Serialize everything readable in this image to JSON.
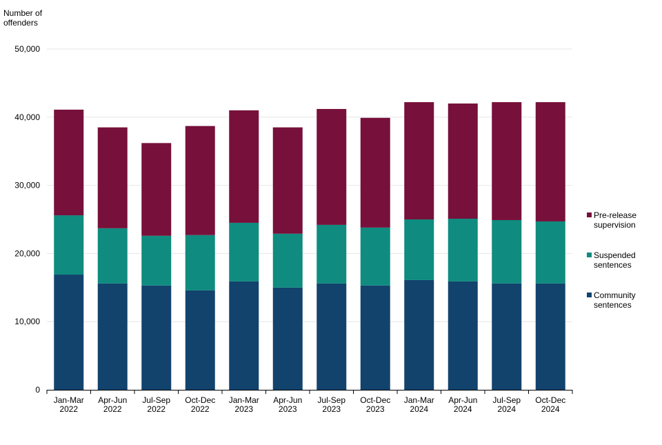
{
  "chart_data": {
    "type": "bar",
    "stacked": true,
    "ylabel": [
      "Number of",
      "offenders"
    ],
    "ylim": [
      0,
      50000
    ],
    "yticks": [
      {
        "value": 0,
        "label": "0"
      },
      {
        "value": 10000,
        "label": "10,000"
      },
      {
        "value": 20000,
        "label": "20,000"
      },
      {
        "value": 30000,
        "label": "30,000"
      },
      {
        "value": 40000,
        "label": "40,000"
      },
      {
        "value": 50000,
        "label": "50,000"
      }
    ],
    "grid": true,
    "legend_position": "right",
    "categories": [
      [
        "Jan-Mar",
        "2022"
      ],
      [
        "Apr-Jun",
        "2022"
      ],
      [
        "Jul-Sep",
        "2022"
      ],
      [
        "Oct-Dec",
        "2022"
      ],
      [
        "Jan-Mar",
        "2023"
      ],
      [
        "Apr-Jun",
        "2023"
      ],
      [
        "Jul-Sep",
        "2023"
      ],
      [
        "Oct-Dec",
        "2023"
      ],
      [
        "Jan-Mar",
        "2024"
      ],
      [
        "Apr-Jun",
        "2024"
      ],
      [
        "Jul-Sep",
        "2024"
      ],
      [
        "Oct-Dec",
        "2024"
      ]
    ],
    "series": [
      {
        "name": [
          "Community",
          "sentences"
        ],
        "color": "#12436d",
        "values": [
          16900,
          15600,
          15300,
          14600,
          15900,
          15000,
          15600,
          15300,
          16100,
          15900,
          15600,
          15600
        ]
      },
      {
        "name": [
          "Suspended",
          "sentences"
        ],
        "color": "#0f8b7f",
        "values": [
          8700,
          8100,
          7300,
          8100,
          8600,
          7900,
          8600,
          8500,
          8900,
          9200,
          9300,
          9100
        ]
      },
      {
        "name": [
          "Pre-release",
          "supervision"
        ],
        "color": "#77103a",
        "values": [
          15500,
          14800,
          13600,
          16000,
          16500,
          15600,
          17000,
          16100,
          17200,
          16900,
          17300,
          17500
        ]
      }
    ],
    "legend_order": [
      2,
      1,
      0
    ]
  }
}
